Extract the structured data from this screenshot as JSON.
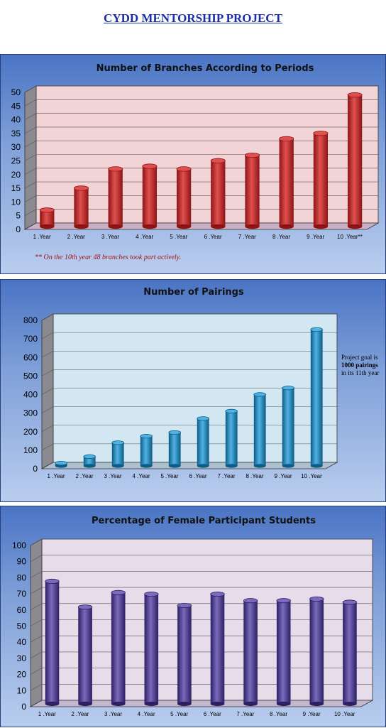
{
  "page": {
    "title": "CYDD MENTORSHIP PROJECT"
  },
  "chart_data": [
    {
      "type": "bar",
      "title": "Number of Branches According to Periods",
      "categories": [
        "1.Year",
        "2.Year",
        "3.Year",
        "4.Year",
        "5.Year",
        "6.Year",
        "7.Year",
        "8.Year",
        "9.Year",
        "10.Year**"
      ],
      "values": [
        6,
        14,
        21,
        22,
        21,
        24,
        26,
        32,
        34,
        48
      ],
      "ylim": [
        0,
        50
      ],
      "yticks": [
        0,
        5,
        10,
        15,
        20,
        25,
        30,
        35,
        40,
        45,
        50
      ],
      "grid": true,
      "style": "3d-cylinder",
      "colors": {
        "bar": "#8e1414",
        "bar_highlight": "#e05050",
        "wall": "#f3d4d6",
        "floor": "#c9b0c6"
      },
      "note": "** On the 10th year 48 branches took part actively."
    },
    {
      "type": "bar",
      "title": "Number of Pairings",
      "categories": [
        "1.Year",
        "2.Year",
        "3.Year",
        "4.Year",
        "5.Year",
        "6.Year",
        "7.Year",
        "8.Year",
        "9.Year",
        "10.Year"
      ],
      "values": [
        15,
        50,
        125,
        160,
        180,
        255,
        295,
        385,
        420,
        735
      ],
      "ylim": [
        0,
        800
      ],
      "yticks": [
        0,
        100,
        200,
        300,
        400,
        500,
        600,
        700,
        800
      ],
      "grid": true,
      "style": "3d-cylinder",
      "colors": {
        "bar": "#0c5c86",
        "bar_highlight": "#4fb3e3",
        "wall": "#d3e7f3",
        "floor": "#aebfd0"
      },
      "side_note": {
        "line1": "Project goal is",
        "line2": "1000 pairings",
        "line3": "in its 11th year"
      }
    },
    {
      "type": "bar",
      "title": "Percentage of Female Participant Students",
      "categories": [
        "1.Year",
        "2.Year",
        "3.Year",
        "4.Year",
        "5.Year",
        "6.Year",
        "7.Year",
        "8.Year",
        "9.Year",
        "10.Year"
      ],
      "values": [
        76,
        60,
        69,
        68,
        61,
        68,
        64,
        64,
        65,
        63
      ],
      "ylim": [
        0,
        100
      ],
      "yticks": [
        0,
        10,
        20,
        30,
        40,
        50,
        60,
        70,
        80,
        90,
        100
      ],
      "grid": true,
      "style": "3d-cylinder",
      "colors": {
        "bar": "#2c1f62",
        "bar_highlight": "#7a6bbd",
        "wall": "#e7dcea",
        "floor": "#c2b7cc"
      }
    }
  ]
}
